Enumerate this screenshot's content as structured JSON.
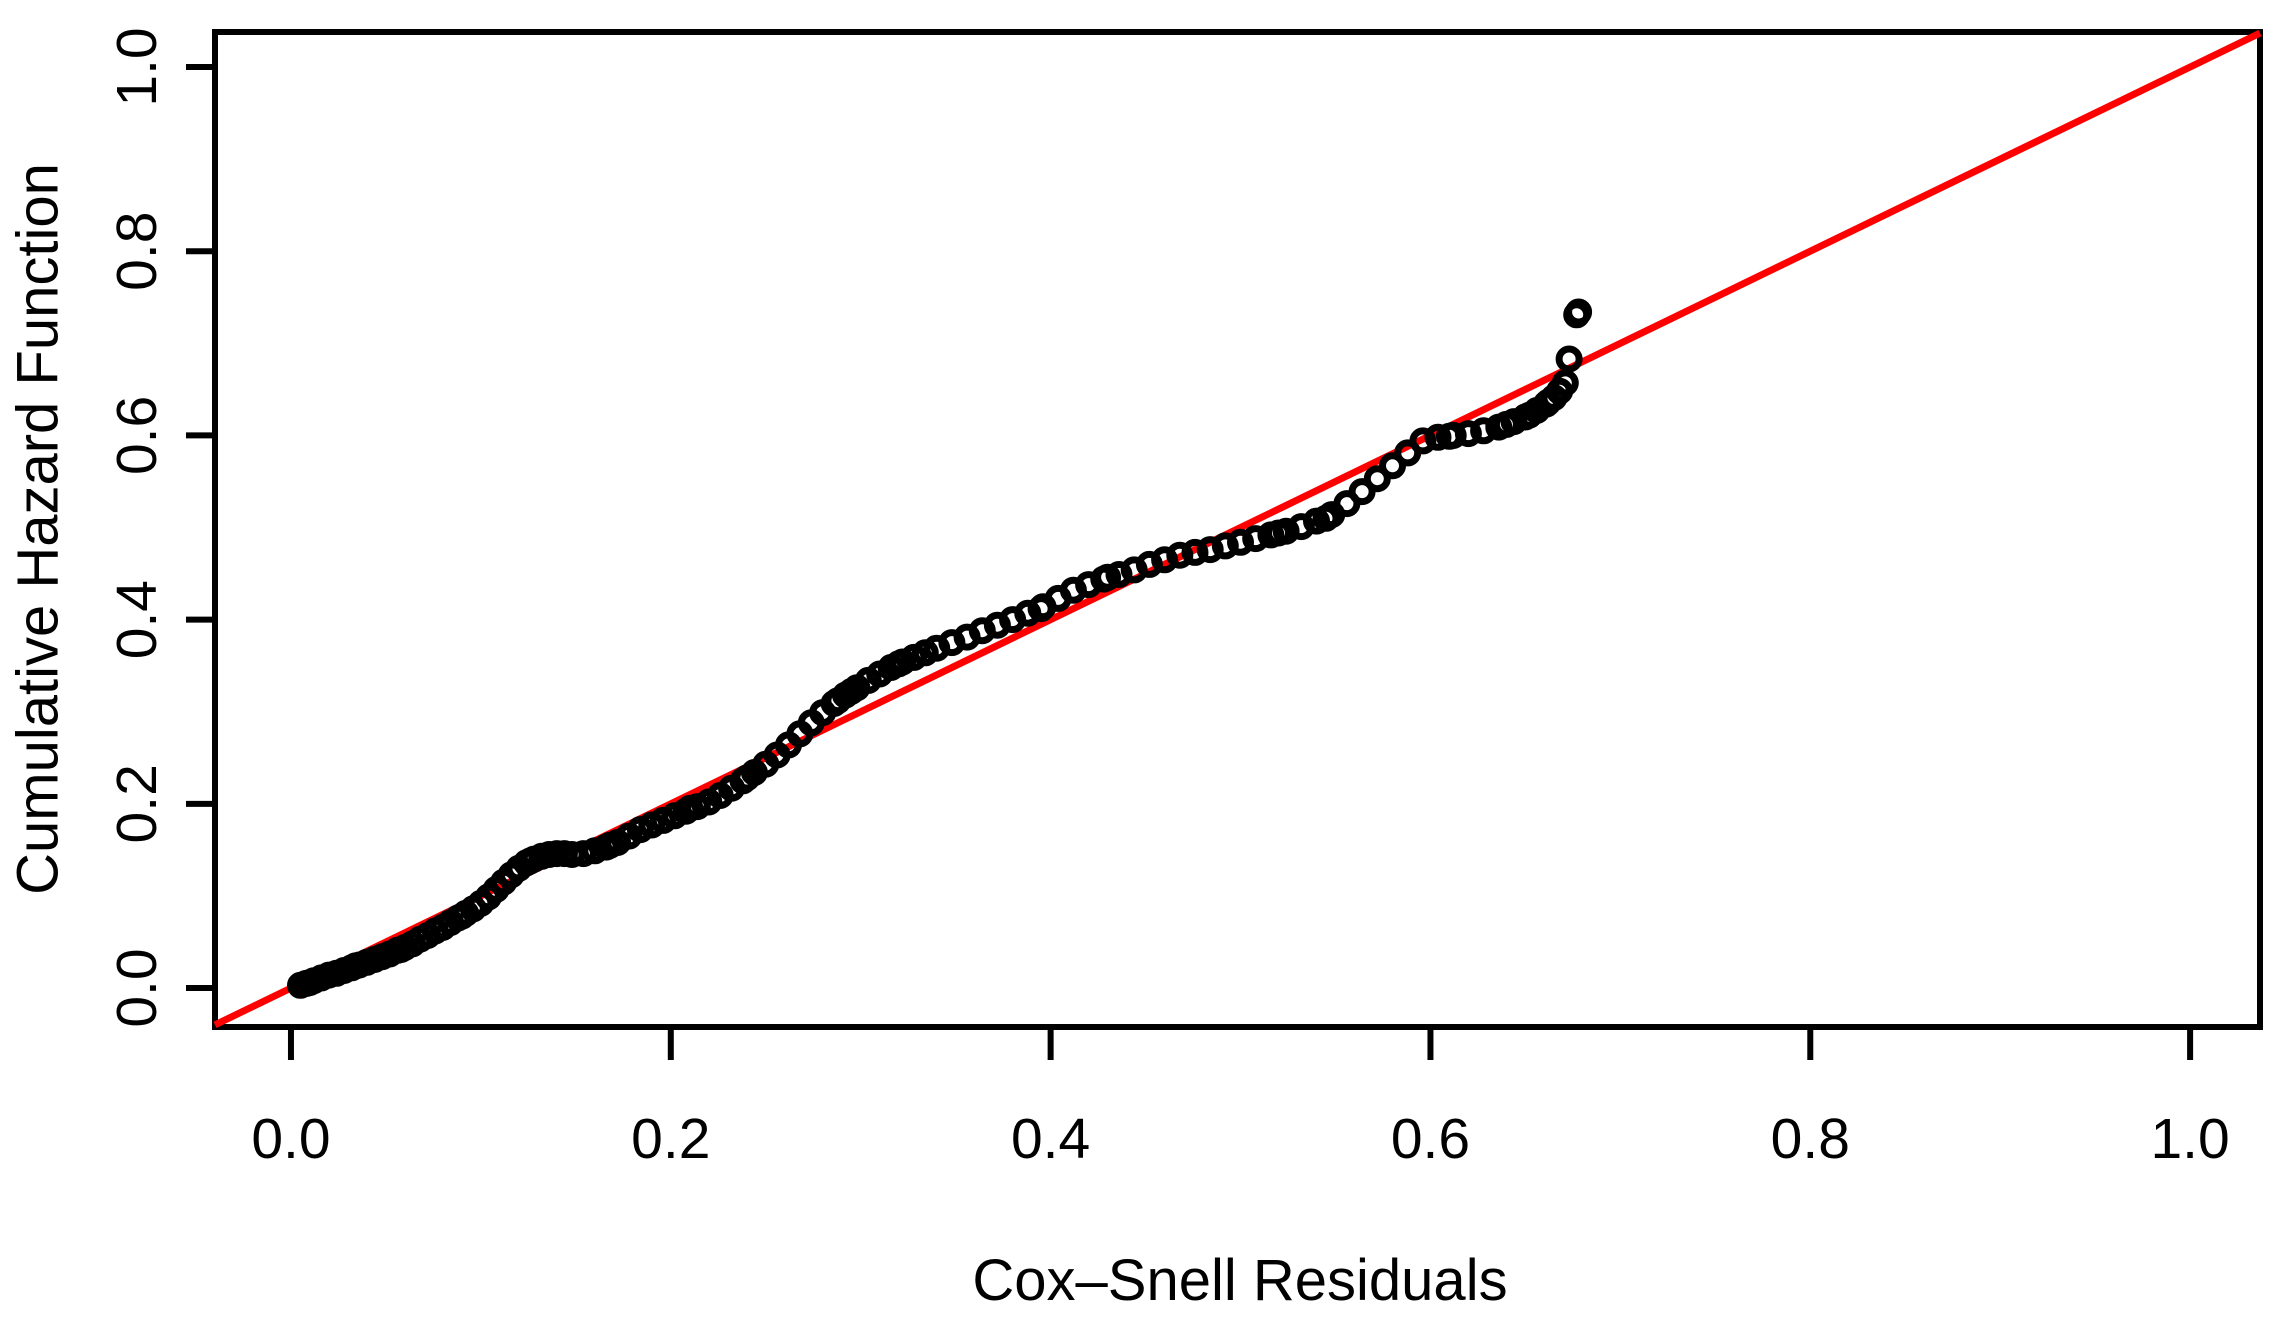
{
  "chart_data": {
    "type": "scatter",
    "title": "",
    "xlabel": "Cox–Snell Residuals",
    "ylabel": "Cumulative Hazard Function",
    "xlim": [
      -0.04,
      1.0368
    ],
    "ylim": [
      -0.0423,
      1.038
    ],
    "x_ticks": {
      "values": [
        0.0,
        0.2,
        0.4,
        0.6,
        0.8,
        1.0
      ],
      "labels": [
        "0.0",
        "0.2",
        "0.4",
        "0.6",
        "0.8",
        "1.0"
      ]
    },
    "y_ticks": {
      "values": [
        0.0,
        0.2,
        0.4,
        0.6,
        0.8,
        1.0
      ],
      "labels": [
        "0.0",
        "0.2",
        "0.4",
        "0.6",
        "0.8",
        "1.0"
      ]
    },
    "grid": false,
    "legend": false,
    "colors": {
      "background": "#ffffff",
      "axis": "#000000",
      "marker": "#000000",
      "reference_line": "#FF0000"
    },
    "marker": {
      "shape": "open-circle",
      "color": "#000000"
    },
    "reference_line": {
      "slope": 1,
      "intercept": 0,
      "color": "#FF0000"
    },
    "points": [
      [
        0.005,
        0.003
      ],
      [
        0.008,
        0.005
      ],
      [
        0.01,
        0.006
      ],
      [
        0.012,
        0.008
      ],
      [
        0.016,
        0.011
      ],
      [
        0.02,
        0.014
      ],
      [
        0.024,
        0.016
      ],
      [
        0.028,
        0.019
      ],
      [
        0.032,
        0.022
      ],
      [
        0.034,
        0.024
      ],
      [
        0.036,
        0.025
      ],
      [
        0.04,
        0.028
      ],
      [
        0.044,
        0.031
      ],
      [
        0.048,
        0.034
      ],
      [
        0.052,
        0.037
      ],
      [
        0.056,
        0.041
      ],
      [
        0.058,
        0.042
      ],
      [
        0.06,
        0.044
      ],
      [
        0.064,
        0.048
      ],
      [
        0.068,
        0.053
      ],
      [
        0.072,
        0.057
      ],
      [
        0.076,
        0.062
      ],
      [
        0.08,
        0.066
      ],
      [
        0.084,
        0.071
      ],
      [
        0.088,
        0.076
      ],
      [
        0.09,
        0.078
      ],
      [
        0.092,
        0.081
      ],
      [
        0.096,
        0.086
      ],
      [
        0.1,
        0.092
      ],
      [
        0.104,
        0.099
      ],
      [
        0.108,
        0.107
      ],
      [
        0.112,
        0.115
      ],
      [
        0.116,
        0.123
      ],
      [
        0.12,
        0.13
      ],
      [
        0.124,
        0.136
      ],
      [
        0.126,
        0.138
      ],
      [
        0.128,
        0.14
      ],
      [
        0.132,
        0.143
      ],
      [
        0.136,
        0.145
      ],
      [
        0.14,
        0.146
      ],
      [
        0.144,
        0.146
      ],
      [
        0.148,
        0.145
      ],
      [
        0.154,
        0.146
      ],
      [
        0.16,
        0.149
      ],
      [
        0.166,
        0.153
      ],
      [
        0.168,
        0.155
      ],
      [
        0.172,
        0.158
      ],
      [
        0.178,
        0.165
      ],
      [
        0.184,
        0.172
      ],
      [
        0.19,
        0.177
      ],
      [
        0.196,
        0.182
      ],
      [
        0.202,
        0.187
      ],
      [
        0.208,
        0.192
      ],
      [
        0.21,
        0.195
      ],
      [
        0.214,
        0.197
      ],
      [
        0.22,
        0.202
      ],
      [
        0.226,
        0.209
      ],
      [
        0.232,
        0.217
      ],
      [
        0.238,
        0.225
      ],
      [
        0.24,
        0.228
      ],
      [
        0.244,
        0.234
      ],
      [
        0.25,
        0.243
      ],
      [
        0.256,
        0.253
      ],
      [
        0.262,
        0.264
      ],
      [
        0.268,
        0.276
      ],
      [
        0.274,
        0.288
      ],
      [
        0.28,
        0.299
      ],
      [
        0.286,
        0.309
      ],
      [
        0.288,
        0.312
      ],
      [
        0.292,
        0.318
      ],
      [
        0.295,
        0.322
      ],
      [
        0.298,
        0.326
      ],
      [
        0.304,
        0.334
      ],
      [
        0.31,
        0.341
      ],
      [
        0.316,
        0.348
      ],
      [
        0.32,
        0.352
      ],
      [
        0.322,
        0.354
      ],
      [
        0.328,
        0.359
      ],
      [
        0.334,
        0.364
      ],
      [
        0.34,
        0.369
      ],
      [
        0.348,
        0.375
      ],
      [
        0.356,
        0.381
      ],
      [
        0.364,
        0.388
      ],
      [
        0.372,
        0.394
      ],
      [
        0.38,
        0.4
      ],
      [
        0.388,
        0.407
      ],
      [
        0.395,
        0.412
      ],
      [
        0.396,
        0.414
      ],
      [
        0.404,
        0.423
      ],
      [
        0.412,
        0.432
      ],
      [
        0.42,
        0.438
      ],
      [
        0.428,
        0.444
      ],
      [
        0.43,
        0.446
      ],
      [
        0.436,
        0.449
      ],
      [
        0.444,
        0.454
      ],
      [
        0.452,
        0.46
      ],
      [
        0.46,
        0.465
      ],
      [
        0.468,
        0.47
      ],
      [
        0.476,
        0.473
      ],
      [
        0.484,
        0.476
      ],
      [
        0.492,
        0.48
      ],
      [
        0.5,
        0.484
      ],
      [
        0.508,
        0.488
      ],
      [
        0.516,
        0.492
      ],
      [
        0.52,
        0.494
      ],
      [
        0.524,
        0.496
      ],
      [
        0.532,
        0.501
      ],
      [
        0.54,
        0.507
      ],
      [
        0.545,
        0.51
      ],
      [
        0.548,
        0.514
      ],
      [
        0.556,
        0.526
      ],
      [
        0.564,
        0.539
      ],
      [
        0.572,
        0.553
      ],
      [
        0.58,
        0.567
      ],
      [
        0.588,
        0.581
      ],
      [
        0.596,
        0.594
      ],
      [
        0.604,
        0.598
      ],
      [
        0.61,
        0.599
      ],
      [
        0.612,
        0.6
      ],
      [
        0.62,
        0.602
      ],
      [
        0.628,
        0.605
      ],
      [
        0.636,
        0.609
      ],
      [
        0.64,
        0.612
      ],
      [
        0.644,
        0.615
      ],
      [
        0.65,
        0.62
      ],
      [
        0.652,
        0.622
      ],
      [
        0.656,
        0.627
      ],
      [
        0.661,
        0.634
      ],
      [
        0.662,
        0.636
      ],
      [
        0.665,
        0.641
      ],
      [
        0.668,
        0.648
      ],
      [
        0.671,
        0.657
      ],
      [
        0.673,
        0.683
      ],
      [
        0.677,
        0.731
      ],
      [
        0.678,
        0.734
      ]
    ]
  }
}
